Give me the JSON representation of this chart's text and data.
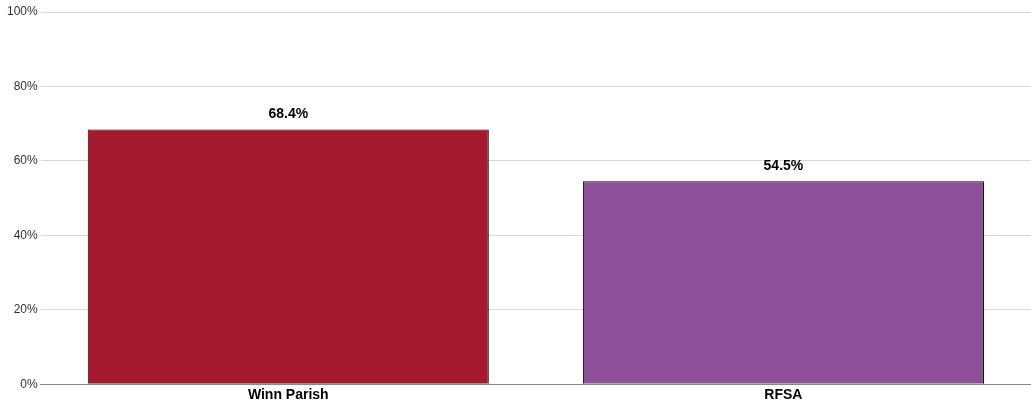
{
  "chart_data": {
    "type": "bar",
    "categories": [
      "Winn Parish",
      "RFSA"
    ],
    "values": [
      68.4,
      54.5
    ],
    "colors": [
      "#a31a2f",
      "#8d4f9a"
    ],
    "value_labels": [
      "68.4%",
      "54.5%"
    ],
    "ylim": [
      0,
      100
    ],
    "yticks": [
      {
        "value": 0,
        "label": "0%"
      },
      {
        "value": 20,
        "label": "20%"
      },
      {
        "value": 40,
        "label": "40%"
      },
      {
        "value": 60,
        "label": "60%"
      },
      {
        "value": 80,
        "label": "80%"
      },
      {
        "value": 100,
        "label": "100%"
      }
    ],
    "grid": "y",
    "legend": false
  }
}
